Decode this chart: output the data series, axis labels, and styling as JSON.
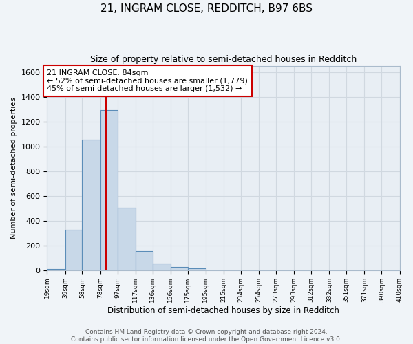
{
  "title": "21, INGRAM CLOSE, REDDITCH, B97 6BS",
  "subtitle": "Size of property relative to semi-detached houses in Redditch",
  "xlabel": "Distribution of semi-detached houses by size in Redditch",
  "ylabel": "Number of semi-detached properties",
  "bin_edges": [
    19,
    39,
    58,
    78,
    97,
    117,
    136,
    156,
    175,
    195,
    215,
    234,
    254,
    273,
    293,
    312,
    332,
    351,
    371,
    390,
    410
  ],
  "bin_counts": [
    10,
    325,
    1055,
    1290,
    505,
    155,
    55,
    25,
    15,
    0,
    0,
    0,
    0,
    0,
    0,
    0,
    0,
    0,
    0,
    0
  ],
  "bar_facecolor": "#c8d8e8",
  "bar_edgecolor": "#5b8db8",
  "vline_color": "#cc0000",
  "vline_x": 84,
  "annotation_text": "21 INGRAM CLOSE: 84sqm\n← 52% of semi-detached houses are smaller (1,779)\n45% of semi-detached houses are larger (1,532) →",
  "annotation_box_edgecolor": "#cc0000",
  "annotation_box_facecolor": "#ffffff",
  "ylim": [
    0,
    1650
  ],
  "yticks": [
    0,
    200,
    400,
    600,
    800,
    1000,
    1200,
    1400,
    1600
  ],
  "tick_labels": [
    "19sqm",
    "39sqm",
    "58sqm",
    "78sqm",
    "97sqm",
    "117sqm",
    "136sqm",
    "156sqm",
    "175sqm",
    "195sqm",
    "215sqm",
    "234sqm",
    "254sqm",
    "273sqm",
    "293sqm",
    "312sqm",
    "332sqm",
    "351sqm",
    "371sqm",
    "390sqm",
    "410sqm"
  ],
  "footer_line1": "Contains HM Land Registry data © Crown copyright and database right 2024.",
  "footer_line2": "Contains public sector information licensed under the Open Government Licence v3.0.",
  "bg_color": "#f0f4f8",
  "plot_bg_color": "#e8eef4",
  "grid_color": "#d0d8e0",
  "title_fontsize": 11,
  "subtitle_fontsize": 9,
  "annotation_fontsize": 8,
  "footer_fontsize": 6.5,
  "ylabel_fontsize": 8,
  "xlabel_fontsize": 8.5
}
